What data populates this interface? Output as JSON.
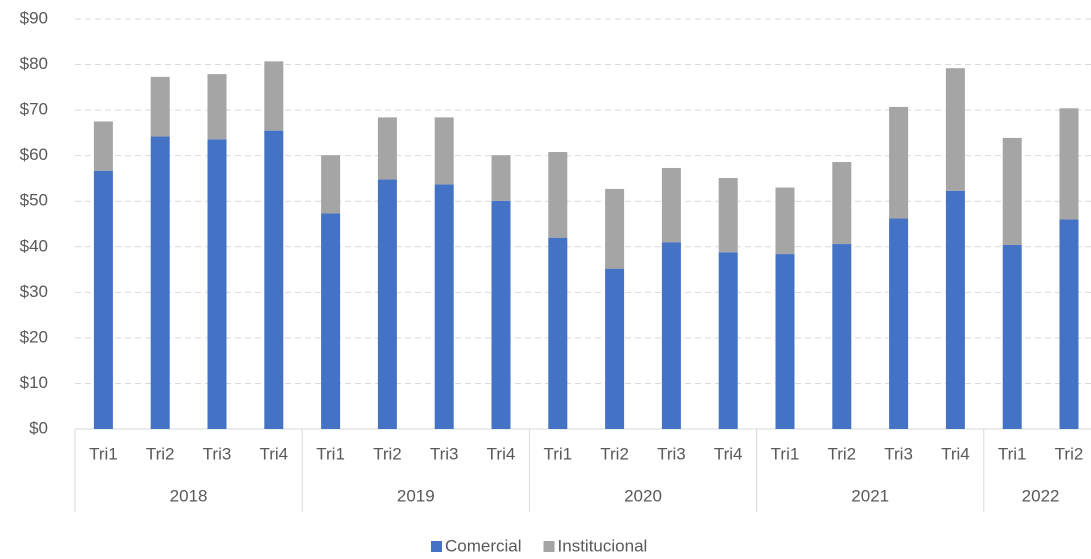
{
  "chart_data": {
    "type": "stacked_bar",
    "groups": [
      {
        "name": "2018",
        "categories": [
          "Tri1",
          "Tri2",
          "Tri3",
          "Tri4"
        ]
      },
      {
        "name": "2019",
        "categories": [
          "Tri1",
          "Tri2",
          "Tri3",
          "Tri4"
        ]
      },
      {
        "name": "2020",
        "categories": [
          "Tri1",
          "Tri2",
          "Tri3",
          "Tri4"
        ]
      },
      {
        "name": "2021",
        "categories": [
          "Tri1",
          "Tri2",
          "Tri3",
          "Tri4"
        ]
      },
      {
        "name": "2022",
        "categories": [
          "Tri1",
          "Tri2"
        ]
      }
    ],
    "series": [
      {
        "name": "Comercial",
        "color": "#4472c4",
        "values": [
          56.7,
          64.2,
          63.6,
          65.5,
          47.3,
          54.8,
          53.7,
          50.1,
          42.0,
          35.2,
          41.0,
          38.8,
          38.4,
          40.6,
          46.2,
          52.3,
          40.4,
          46.0
        ]
      },
      {
        "name": "Institucional",
        "color": "#a5a5a5",
        "values": [
          10.8,
          13.1,
          14.3,
          15.2,
          12.8,
          13.6,
          14.7,
          10.0,
          18.8,
          17.5,
          16.3,
          16.3,
          14.6,
          18.0,
          24.5,
          26.9,
          23.5,
          24.4
        ]
      }
    ],
    "ylim": [
      0,
      90
    ],
    "yticks": [
      {
        "value": 0,
        "label": "$0"
      },
      {
        "value": 10,
        "label": "$10"
      },
      {
        "value": 20,
        "label": "$20"
      },
      {
        "value": 30,
        "label": "$30"
      },
      {
        "value": 40,
        "label": "$40"
      },
      {
        "value": 50,
        "label": "$50"
      },
      {
        "value": 60,
        "label": "$60"
      },
      {
        "value": 70,
        "label": "$70"
      },
      {
        "value": 80,
        "label": "$80"
      },
      {
        "value": 90,
        "label": "$90"
      }
    ],
    "grid": true,
    "legend": "bottom"
  }
}
